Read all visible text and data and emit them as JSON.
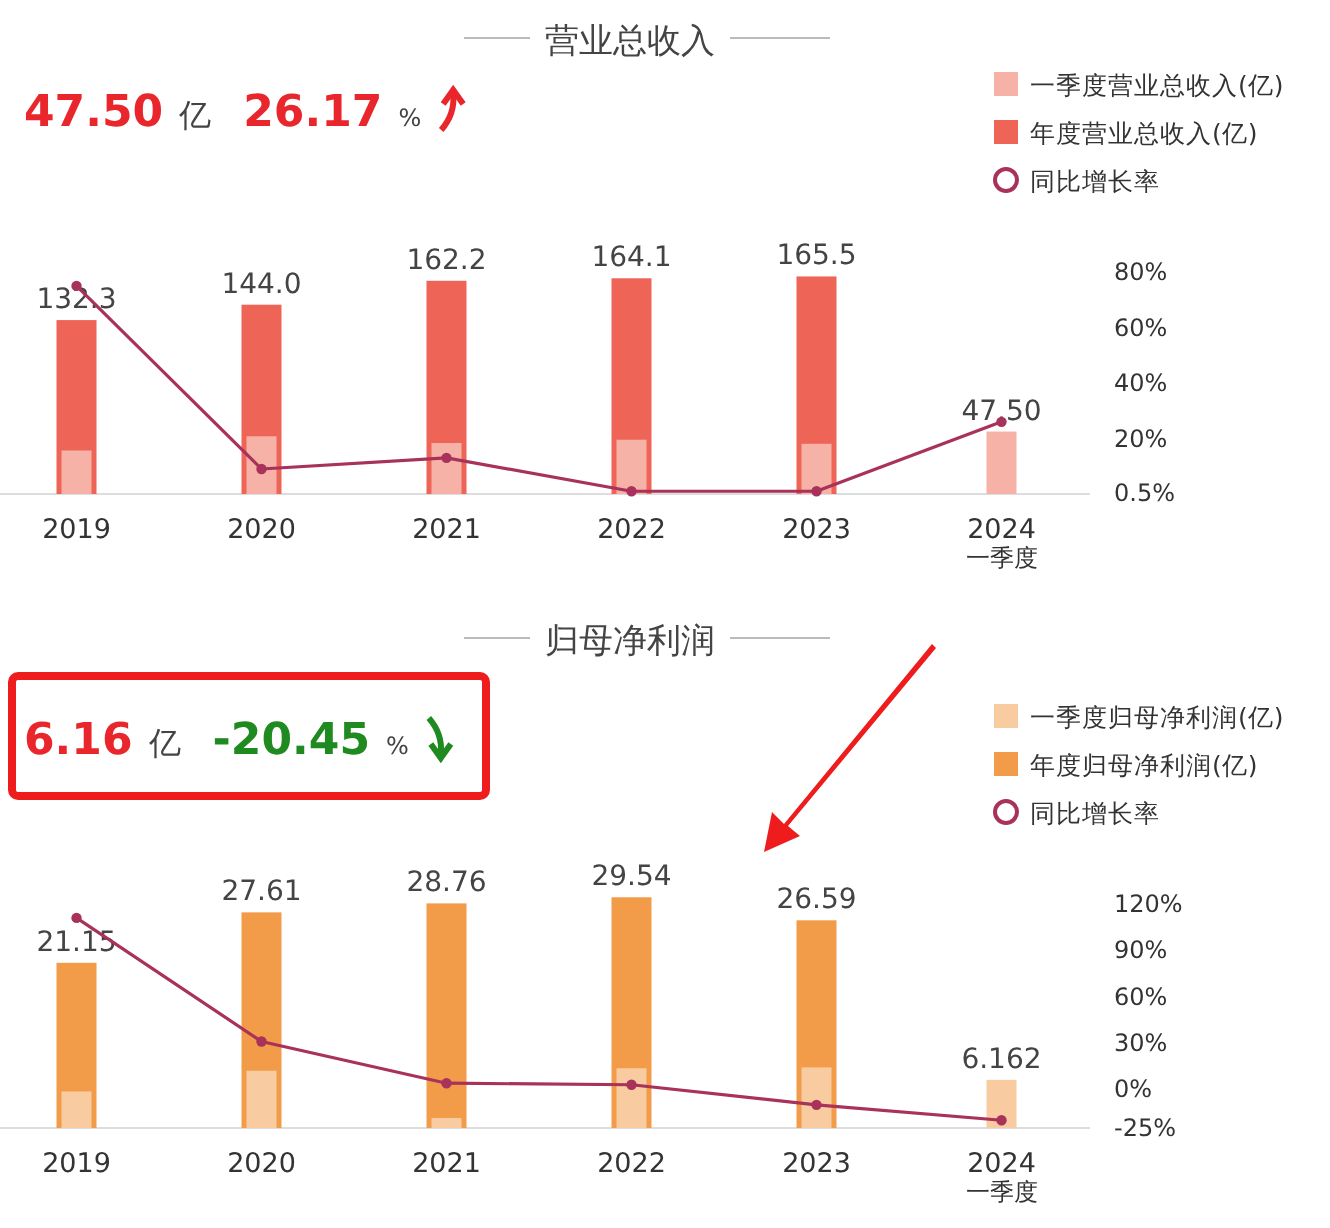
{
  "chart_data": [
    {
      "type": "bar",
      "title": "营业总收入",
      "annotations": [
        "47.50",
        "亿",
        "26.17",
        "%"
      ],
      "categories": [
        "2019",
        "2020",
        "2021",
        "2022",
        "2023",
        "2024\n一季度"
      ],
      "legend": "top right",
      "y2lim": [
        0,
        80
      ],
      "y2ticks": [
        {
          "value": 0.5,
          "label": "0.5%"
        },
        {
          "value": 20,
          "label": "20%"
        },
        {
          "value": 40,
          "label": "40%"
        },
        {
          "value": 60,
          "label": "60%"
        },
        {
          "value": 80,
          "label": "80%"
        }
      ],
      "series": [
        {
          "name": "一季度营业总收入(亿)",
          "color": "#f7b2a8",
          "values": [
            33.1,
            43.9,
            38.8,
            41.3,
            38.2,
            47.5
          ],
          "value_labels": [
            null,
            null,
            null,
            null,
            null,
            "47.50"
          ]
        },
        {
          "name": "年度营业总收入(亿)",
          "color": "#ee6457",
          "values": [
            132.3,
            144.0,
            162.2,
            164.1,
            165.5,
            null
          ],
          "value_labels": [
            "132.3",
            "144.0",
            "162.2",
            "164.1",
            "165.5",
            null
          ]
        },
        {
          "name": "同比增长率",
          "type": "line",
          "axis": "y2",
          "marker": "circle",
          "color": "#a8325a",
          "values": [
            75,
            9,
            13,
            1,
            1,
            26
          ]
        }
      ]
    },
    {
      "type": "bar",
      "title": "归母净利润",
      "annotations": [
        "6.16",
        "亿",
        "-20.45",
        "%"
      ],
      "categories": [
        "2019",
        "2020",
        "2021",
        "2022",
        "2023",
        "2024\n一季度"
      ],
      "legend": "top right",
      "y2lim": [
        -25,
        120
      ],
      "y2ticks": [
        {
          "value": -25,
          "label": "-25%"
        },
        {
          "value": 0,
          "label": "0%"
        },
        {
          "value": 30,
          "label": "30%"
        },
        {
          "value": 60,
          "label": "60%"
        },
        {
          "value": 90,
          "label": "90%"
        },
        {
          "value": 120,
          "label": "120%"
        }
      ],
      "series": [
        {
          "name": "一季度归母净利润(亿)",
          "color": "#f8cba0",
          "values": [
            4.68,
            7.33,
            1.28,
            7.65,
            7.76,
            6.162
          ],
          "value_labels": [
            null,
            null,
            null,
            null,
            null,
            "6.162"
          ]
        },
        {
          "name": "年度归母净利润(亿)",
          "color": "#f29c4a",
          "values": [
            21.15,
            27.61,
            28.76,
            29.54,
            26.59,
            null
          ],
          "value_labels": [
            "21.15",
            "27.61",
            "28.76",
            "29.54",
            "26.59",
            null
          ]
        },
        {
          "name": "同比增长率",
          "type": "line",
          "axis": "y2",
          "marker": "circle",
          "color": "#a8325a",
          "values": [
            111,
            31,
            4,
            3,
            -10,
            -20
          ]
        }
      ]
    }
  ]
}
